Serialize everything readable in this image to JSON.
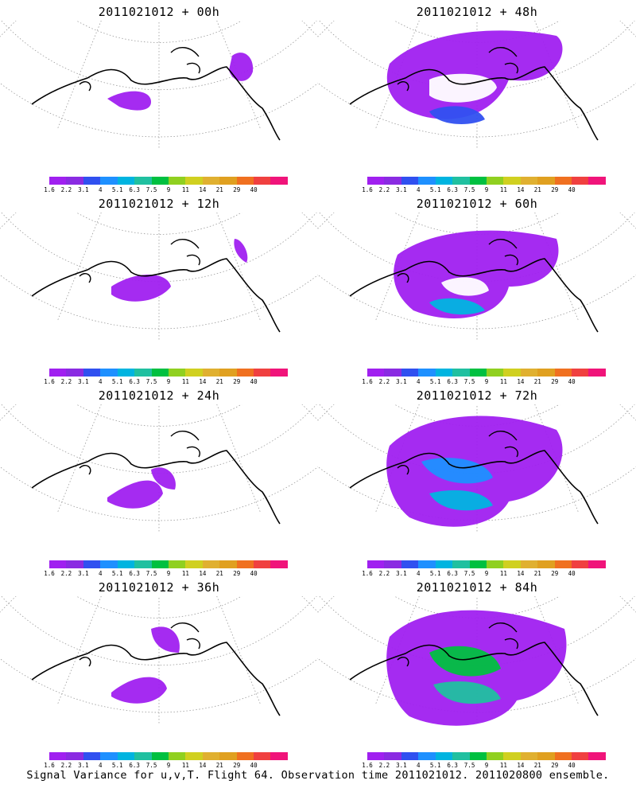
{
  "panels": [
    {
      "title": "2011021012 + 00h"
    },
    {
      "title": "2011021012 + 48h"
    },
    {
      "title": "2011021012 + 12h"
    },
    {
      "title": "2011021012 + 60h"
    },
    {
      "title": "2011021012 + 24h"
    },
    {
      "title": "2011021012 + 72h"
    },
    {
      "title": "2011021012 + 36h"
    },
    {
      "title": "2011021012 + 84h"
    }
  ],
  "colorbar": {
    "colors": [
      "#a020f0",
      "#8a2be2",
      "#3050f0",
      "#1e90ff",
      "#00b4e0",
      "#20c0a0",
      "#00c040",
      "#90d020",
      "#d0d020",
      "#e0b030",
      "#e0a020",
      "#f07020",
      "#f04040",
      "#f0147a"
    ],
    "labels": [
      "1.6",
      "2.2",
      "3.1",
      "4",
      "5.1",
      "6.3",
      "7.5",
      "9",
      "11",
      "14",
      "21",
      "29",
      "40"
    ]
  },
  "caption": "Signal Variance for u,v,T. Flight 64. Observation time 2011021012. 2011020800 ensemble."
}
